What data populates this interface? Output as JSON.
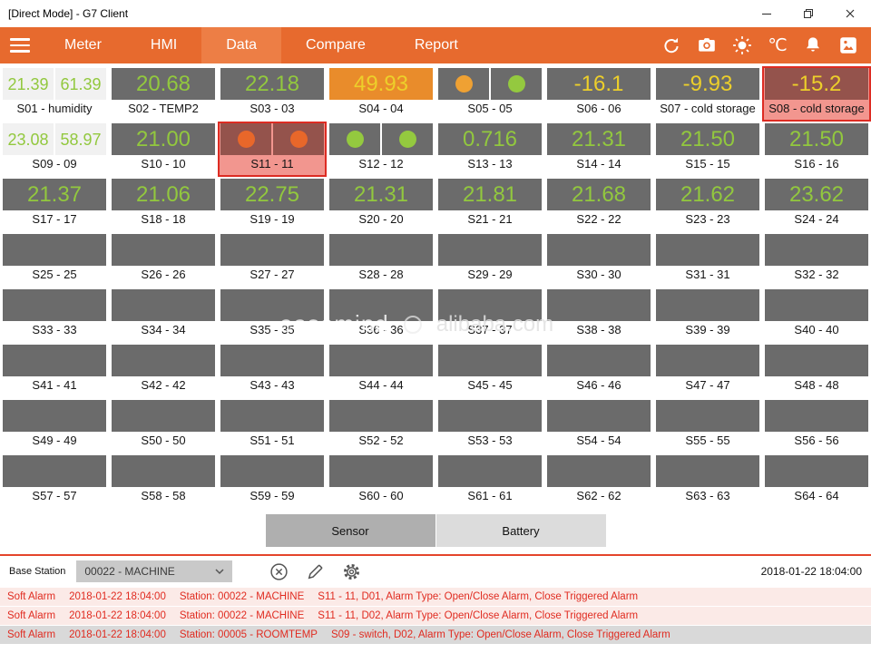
{
  "window": {
    "title": "[Direct Mode] - G7 Client"
  },
  "nav": {
    "tabs": [
      {
        "label": "Meter",
        "active": false
      },
      {
        "label": "HMI",
        "active": false
      },
      {
        "label": "Data",
        "active": true
      },
      {
        "label": "Compare",
        "active": false
      },
      {
        "label": "Report",
        "active": false
      }
    ],
    "temp_unit": "℃"
  },
  "colors": {
    "accent_orange": "#E76A2E",
    "tile_dark": "#6B6B6B",
    "value_green": "#92C83E",
    "value_yellow": "#EDCF2A",
    "tile_orange": "#E98C2B",
    "alarm_red": "#DD2C23",
    "alarm_pink": "#F2968F",
    "circle_orange": "#EFA133",
    "circle_green": "#94C93F",
    "circle_red": "#E8672A"
  },
  "grid": {
    "tiles": [
      {
        "id": "S01",
        "label": "S01 - humidity",
        "type": "dual",
        "values": [
          "21.39",
          "61.39"
        ]
      },
      {
        "id": "S02",
        "label": "S02 - TEMP2",
        "type": "value",
        "value": "20.68",
        "color": "green"
      },
      {
        "id": "S03",
        "label": "S03 - 03",
        "type": "value",
        "value": "22.18",
        "color": "green"
      },
      {
        "id": "S04",
        "label": "S04 - 04",
        "type": "value",
        "value": "49.93",
        "color": "yellow",
        "bg": "orange"
      },
      {
        "id": "S05",
        "label": "S05 - 05",
        "type": "switch",
        "circles": [
          "circle_orange",
          "circle_green"
        ]
      },
      {
        "id": "S06",
        "label": "S06 - 06",
        "type": "value",
        "value": "-16.1",
        "color": "yellow"
      },
      {
        "id": "S07",
        "label": "S07 - cold storage",
        "type": "value",
        "value": "-9.93",
        "color": "yellow"
      },
      {
        "id": "S08",
        "label": "S08 - cold storage",
        "type": "value",
        "value": "-15.2",
        "color": "yellow",
        "alarm": true
      },
      {
        "id": "S09",
        "label": "S09 - 09",
        "type": "dual",
        "values": [
          "23.08",
          "58.97"
        ]
      },
      {
        "id": "S10",
        "label": "S10 - 10",
        "type": "value",
        "value": "21.00",
        "color": "green"
      },
      {
        "id": "S11",
        "label": "S11 - 11",
        "type": "switch",
        "circles": [
          "circle_red",
          "circle_red"
        ],
        "alarm": true
      },
      {
        "id": "S12",
        "label": "S12 - 12",
        "type": "switch",
        "circles": [
          "circle_green",
          "circle_green"
        ]
      },
      {
        "id": "S13",
        "label": "S13 - 13",
        "type": "value",
        "value": "0.716",
        "color": "green"
      },
      {
        "id": "S14",
        "label": "S14 - 14",
        "type": "value",
        "value": "21.31",
        "color": "green"
      },
      {
        "id": "S15",
        "label": "S15 - 15",
        "type": "value",
        "value": "21.50",
        "color": "green"
      },
      {
        "id": "S16",
        "label": "S16 - 16",
        "type": "value",
        "value": "21.50",
        "color": "green"
      },
      {
        "id": "S17",
        "label": "S17 - 17",
        "type": "value",
        "value": "21.37",
        "color": "green"
      },
      {
        "id": "S18",
        "label": "S18 - 18",
        "type": "value",
        "value": "21.06",
        "color": "green"
      },
      {
        "id": "S19",
        "label": "S19 - 19",
        "type": "value",
        "value": "22.75",
        "color": "green"
      },
      {
        "id": "S20",
        "label": "S20 - 20",
        "type": "value",
        "value": "21.31",
        "color": "green"
      },
      {
        "id": "S21",
        "label": "S21 - 21",
        "type": "value",
        "value": "21.81",
        "color": "green"
      },
      {
        "id": "S22",
        "label": "S22 - 22",
        "type": "value",
        "value": "21.68",
        "color": "green"
      },
      {
        "id": "S23",
        "label": "S23 - 23",
        "type": "value",
        "value": "21.62",
        "color": "green"
      },
      {
        "id": "S24",
        "label": "S24 - 24",
        "type": "value",
        "value": "23.62",
        "color": "green"
      },
      {
        "id": "S25",
        "label": "S25 - 25",
        "type": "empty"
      },
      {
        "id": "S26",
        "label": "S26 - 26",
        "type": "empty"
      },
      {
        "id": "S27",
        "label": "S27 - 27",
        "type": "empty"
      },
      {
        "id": "S28",
        "label": "S28 - 28",
        "type": "empty"
      },
      {
        "id": "S29",
        "label": "S29 - 29",
        "type": "empty"
      },
      {
        "id": "S30",
        "label": "S30 - 30",
        "type": "empty"
      },
      {
        "id": "S31",
        "label": "S31 - 31",
        "type": "empty"
      },
      {
        "id": "S32",
        "label": "S32 - 32",
        "type": "empty"
      },
      {
        "id": "S33",
        "label": "S33 - 33",
        "type": "empty"
      },
      {
        "id": "S34",
        "label": "S34 - 34",
        "type": "empty"
      },
      {
        "id": "S35",
        "label": "S35 - 35",
        "type": "empty"
      },
      {
        "id": "S36",
        "label": "S36 - 36",
        "type": "empty"
      },
      {
        "id": "S37",
        "label": "S37 - 37",
        "type": "empty"
      },
      {
        "id": "S38",
        "label": "S38 - 38",
        "type": "empty"
      },
      {
        "id": "S39",
        "label": "S39 - 39",
        "type": "empty"
      },
      {
        "id": "S40",
        "label": "S40 - 40",
        "type": "empty"
      },
      {
        "id": "S41",
        "label": "S41 - 41",
        "type": "empty"
      },
      {
        "id": "S42",
        "label": "S42 - 42",
        "type": "empty"
      },
      {
        "id": "S43",
        "label": "S43 - 43",
        "type": "empty"
      },
      {
        "id": "S44",
        "label": "S44 - 44",
        "type": "empty"
      },
      {
        "id": "S45",
        "label": "S45 - 45",
        "type": "empty"
      },
      {
        "id": "S46",
        "label": "S46 - 46",
        "type": "empty"
      },
      {
        "id": "S47",
        "label": "S47 - 47",
        "type": "empty"
      },
      {
        "id": "S48",
        "label": "S48 - 48",
        "type": "empty"
      },
      {
        "id": "S49",
        "label": "S49 - 49",
        "type": "empty"
      },
      {
        "id": "S50",
        "label": "S50 - 50",
        "type": "empty"
      },
      {
        "id": "S51",
        "label": "S51 - 51",
        "type": "empty"
      },
      {
        "id": "S52",
        "label": "S52 - 52",
        "type": "empty"
      },
      {
        "id": "S53",
        "label": "S53 - 53",
        "type": "empty"
      },
      {
        "id": "S54",
        "label": "S54 - 54",
        "type": "empty"
      },
      {
        "id": "S55",
        "label": "S55 - 55",
        "type": "empty"
      },
      {
        "id": "S56",
        "label": "S56 - 56",
        "type": "empty"
      },
      {
        "id": "S57",
        "label": "S57 - 57",
        "type": "empty"
      },
      {
        "id": "S58",
        "label": "S58 - 58",
        "type": "empty"
      },
      {
        "id": "S59",
        "label": "S59 - 59",
        "type": "empty"
      },
      {
        "id": "S60",
        "label": "S60 - 60",
        "type": "empty"
      },
      {
        "id": "S61",
        "label": "S61 - 61",
        "type": "empty"
      },
      {
        "id": "S62",
        "label": "S62 - 62",
        "type": "empty"
      },
      {
        "id": "S63",
        "label": "S63 - 63",
        "type": "empty"
      },
      {
        "id": "S64",
        "label": "S64 - 64",
        "type": "empty"
      }
    ]
  },
  "footer_tabs": [
    {
      "label": "Sensor",
      "active": true
    },
    {
      "label": "Battery",
      "active": false
    }
  ],
  "base_station": {
    "label": "Base Station",
    "selected_option": "00022 - MACHINE",
    "timestamp": "2018-01-22 18:04:00"
  },
  "alarms": [
    {
      "type": "Soft Alarm",
      "time": "2018-01-22 18:04:00",
      "station": "Station: 00022 - MACHINE",
      "detail": "S11 - 11, D01, Alarm Type: Open/Close Alarm, Close Triggered Alarm",
      "bg": "pink"
    },
    {
      "type": "Soft Alarm",
      "time": "2018-01-22 18:04:00",
      "station": "Station: 00022 - MACHINE",
      "detail": "S11 - 11, D02, Alarm Type: Open/Close Alarm, Close Triggered Alarm",
      "bg": "pink"
    },
    {
      "type": "Soft Alarm",
      "time": "2018-01-22 18:04:00",
      "station": "Station: 00005 - ROOMTEMP",
      "detail": "S09 - switch, D02, Alarm Type: Open/Close Alarm, Close Triggered Alarm",
      "bg": "gray"
    }
  ],
  "watermark": {
    "brand": "easemind",
    "site": "alibaba.com"
  }
}
